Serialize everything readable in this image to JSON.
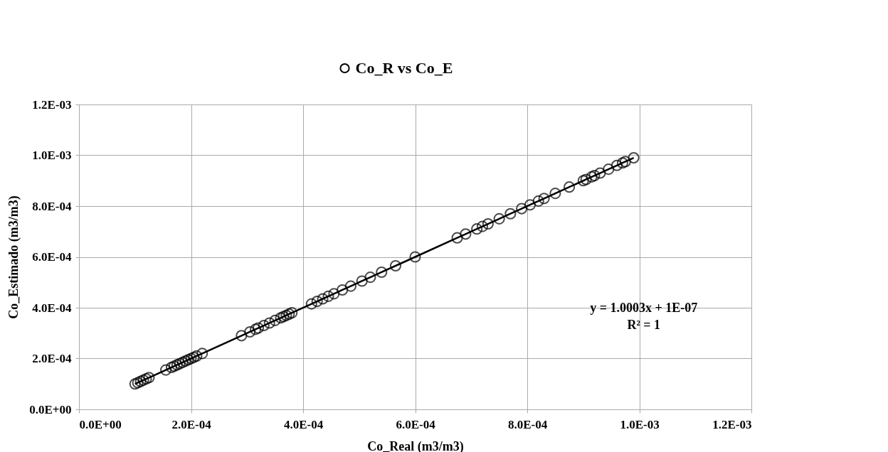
{
  "chart_data": {
    "type": "line",
    "xlabel": "Co_Real (m3/m3)",
    "ylabel": "Co_Estimado (m3/m3)",
    "x": [
      0.0001,
      0.000105,
      0.00011,
      0.000115,
      0.00012,
      0.000125,
      0.000155,
      0.000165,
      0.00017,
      0.000175,
      0.00018,
      0.000185,
      0.00019,
      0.000195,
      0.0002,
      0.000205,
      0.00021,
      0.00022,
      0.00029,
      0.000305,
      0.000315,
      0.00032,
      0.00033,
      0.00034,
      0.00035,
      0.00036,
      0.000365,
      0.00037,
      0.000375,
      0.00038,
      0.000415,
      0.000425,
      0.000435,
      0.000445,
      0.000455,
      0.00047,
      0.000485,
      0.000505,
      0.00052,
      0.00054,
      0.000565,
      0.0006,
      0.000675,
      0.00069,
      0.00071,
      0.00072,
      0.00073,
      0.00075,
      0.00077,
      0.00079,
      0.000805,
      0.00082,
      0.00083,
      0.00085,
      0.000875,
      0.0009,
      0.000905,
      0.000915,
      0.00092,
      0.00093,
      0.000945,
      0.00096,
      0.00097,
      0.000975,
      0.00099
    ],
    "series": [
      {
        "name": "Co_R vs Co_E",
        "color": "#000000",
        "values": [
          0.0001,
          0.000105,
          0.00011,
          0.000115,
          0.00012,
          0.000125,
          0.000155,
          0.000165,
          0.00017,
          0.000175,
          0.00018,
          0.000185,
          0.00019,
          0.000195,
          0.0002,
          0.000205,
          0.00021,
          0.00022,
          0.00029,
          0.000305,
          0.000315,
          0.00032,
          0.00033,
          0.00034,
          0.00035,
          0.00036,
          0.000365,
          0.00037,
          0.000375,
          0.00038,
          0.000415,
          0.000425,
          0.000435,
          0.000445,
          0.000455,
          0.00047,
          0.000485,
          0.000505,
          0.00052,
          0.00054,
          0.000565,
          0.0006,
          0.000675,
          0.00069,
          0.00071,
          0.00072,
          0.00073,
          0.00075,
          0.00077,
          0.00079,
          0.000805,
          0.00082,
          0.00083,
          0.00085,
          0.000875,
          0.0009,
          0.000905,
          0.000915,
          0.00092,
          0.00093,
          0.000945,
          0.00096,
          0.00097,
          0.000975,
          0.00099
        ]
      }
    ],
    "xlim": [
      0,
      0.0012
    ],
    "ylim": [
      0,
      0.0012
    ],
    "xticks": [
      {
        "value": 0,
        "label": "0.0E+00"
      },
      {
        "value": 0.0002,
        "label": "2.0E-04"
      },
      {
        "value": 0.0004,
        "label": "4.0E-04"
      },
      {
        "value": 0.0006,
        "label": "6.0E-04"
      },
      {
        "value": 0.0008,
        "label": "8.0E-04"
      },
      {
        "value": 0.001,
        "label": "1.0E-03"
      },
      {
        "value": 0.0012,
        "label": "1.2E-03"
      }
    ],
    "yticks": [
      {
        "value": 0,
        "label": "0.0E+00"
      },
      {
        "value": 0.0002,
        "label": "2.0E-04"
      },
      {
        "value": 0.0004,
        "label": "4.0E-04"
      },
      {
        "value": 0.0006,
        "label": "6.0E-04"
      },
      {
        "value": 0.0008,
        "label": "8.0E-04"
      },
      {
        "value": 0.001,
        "label": "1.0E-03"
      },
      {
        "value": 0.0012,
        "label": "1.2E-03"
      }
    ],
    "annotations": [
      "y = 1.0003x + 1E-07",
      "R² = 1"
    ],
    "grid": true,
    "legend": "top",
    "marker": "circle",
    "line_style": "solid"
  }
}
